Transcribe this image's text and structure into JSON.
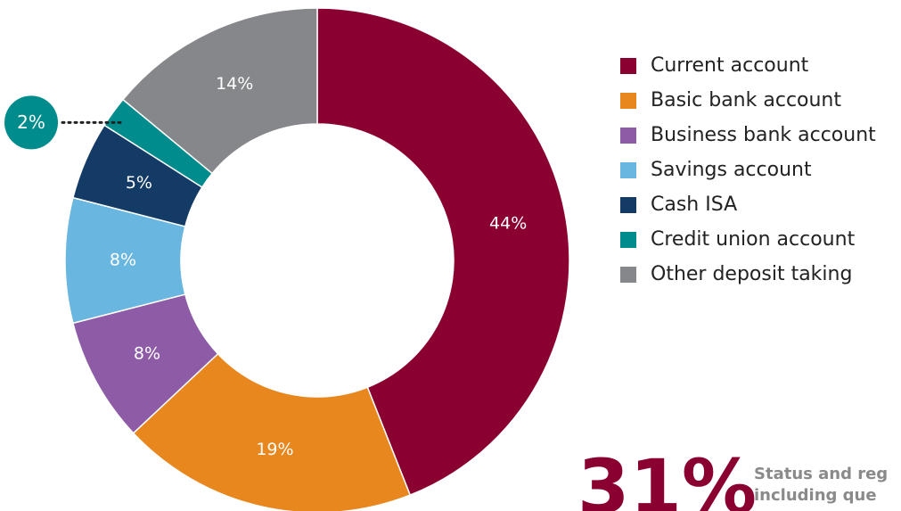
{
  "chart_data": {
    "type": "pie",
    "categories": [
      "Current account",
      "Basic bank account",
      "Business bank account",
      "Savings account",
      "Cash ISA",
      "Credit union account",
      "Other deposit taking"
    ],
    "values": [
      44,
      19,
      8,
      8,
      5,
      2,
      14
    ],
    "value_labels": [
      "44%",
      "19%",
      "8%",
      "8%",
      "5%",
      "2%",
      "14%"
    ],
    "colors": [
      "#8a0030",
      "#e8871e",
      "#8e5ba6",
      "#69b6e0",
      "#143a66",
      "#008c8c",
      "#86878a"
    ],
    "legend": "right",
    "annotations": {
      "big": "31%",
      "lines": [
        "Status and reg",
        "including que"
      ]
    }
  }
}
